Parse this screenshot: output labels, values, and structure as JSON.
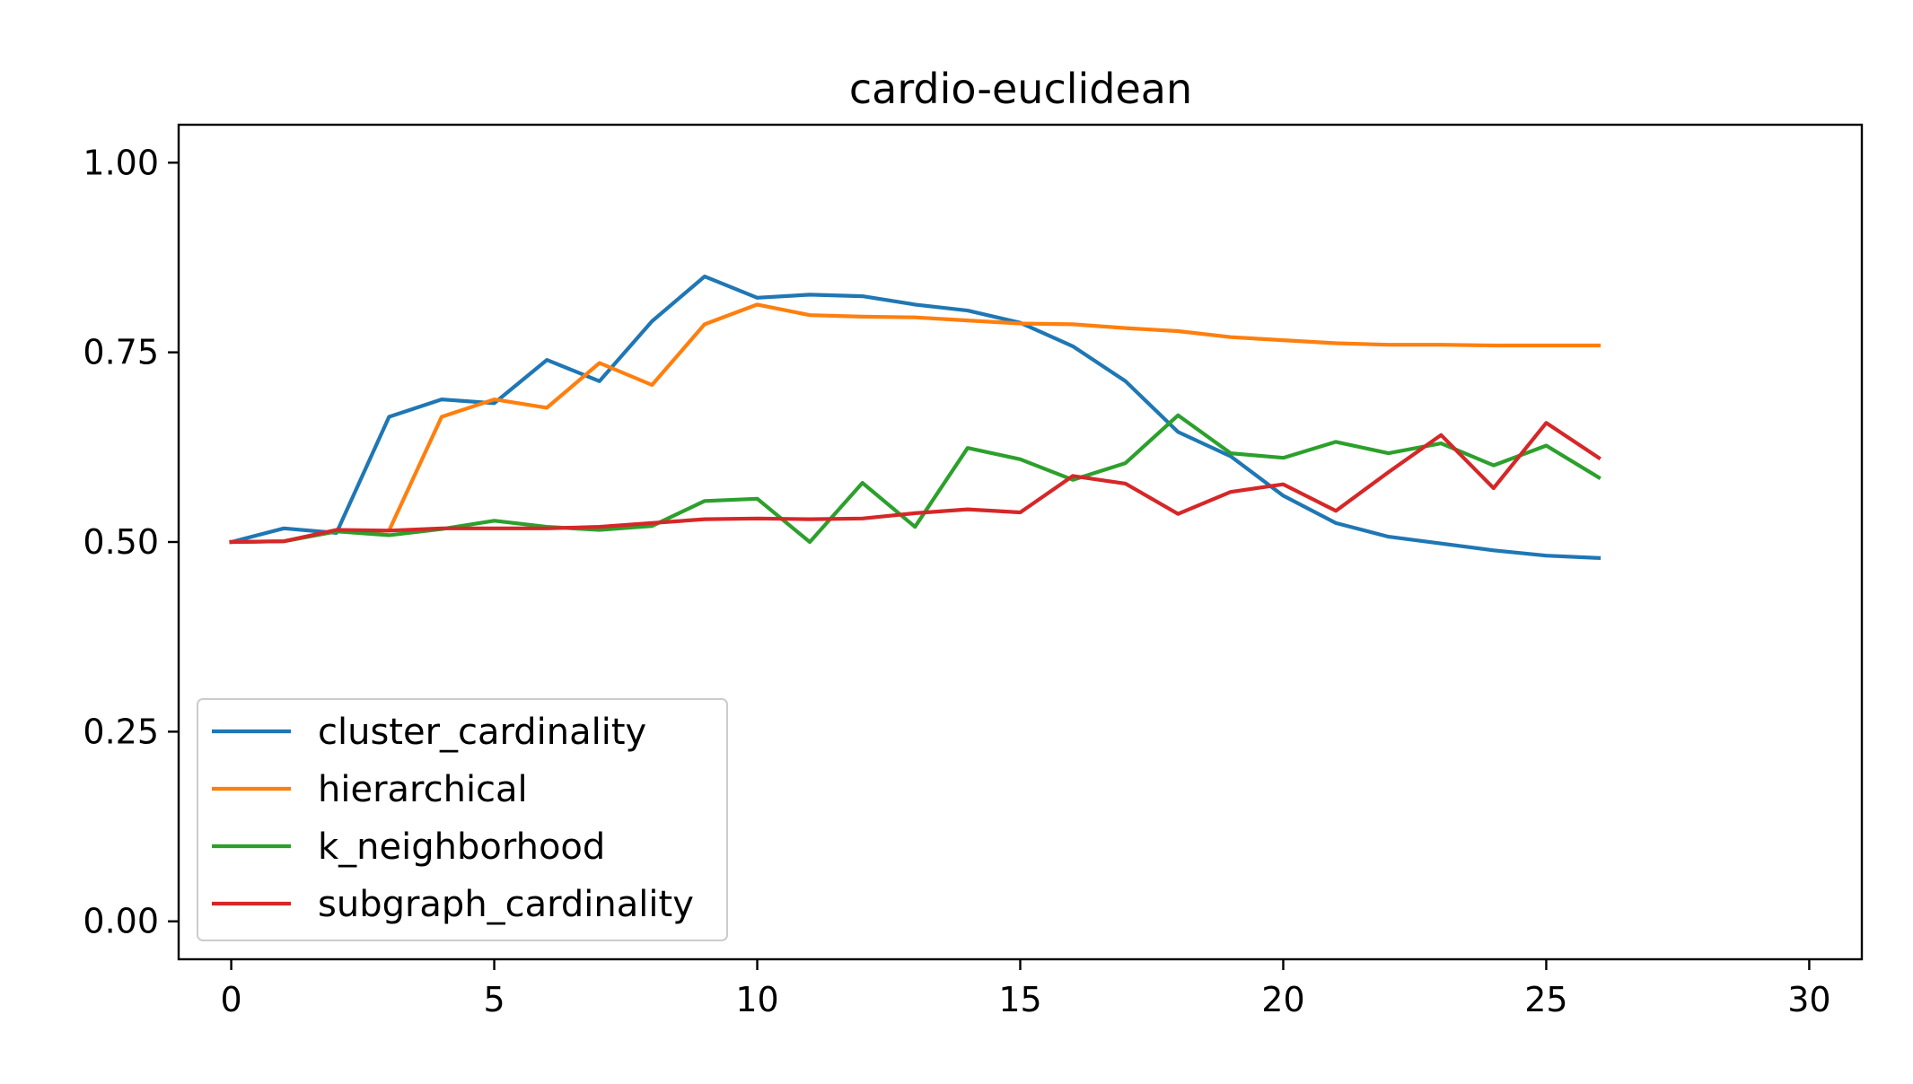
{
  "chart_data": {
    "type": "line",
    "title": "cardio-euclidean",
    "xlabel": "",
    "ylabel": "",
    "xlim": [
      -1,
      31
    ],
    "ylim": [
      -0.05,
      1.05
    ],
    "xticks": [
      0,
      5,
      10,
      15,
      20,
      25,
      30
    ],
    "yticks": [
      0.0,
      0.25,
      0.5,
      0.75,
      1.0
    ],
    "xtick_labels": [
      "0",
      "5",
      "10",
      "15",
      "20",
      "25",
      "30"
    ],
    "ytick_labels": [
      "0.00",
      "0.25",
      "0.50",
      "0.75",
      "1.00"
    ],
    "grid": false,
    "legend_position": "lower-left",
    "x": [
      0,
      1,
      2,
      3,
      4,
      5,
      6,
      7,
      8,
      9,
      10,
      11,
      12,
      13,
      14,
      15,
      16,
      17,
      18,
      19,
      20,
      21,
      22,
      23,
      24,
      25,
      26
    ],
    "series": [
      {
        "name": "cluster_cardinality",
        "color": "#1f77b4",
        "values": [
          0.5,
          0.518,
          0.512,
          0.665,
          0.688,
          0.683,
          0.74,
          0.712,
          0.791,
          0.85,
          0.822,
          0.826,
          0.824,
          0.813,
          0.805,
          0.789,
          0.758,
          0.712,
          0.645,
          0.613,
          0.561,
          0.525,
          0.507,
          0.498,
          0.489,
          0.482,
          0.479
        ]
      },
      {
        "name": "hierarchical",
        "color": "#ff7f0e",
        "values": [
          0.5,
          0.501,
          0.514,
          0.515,
          0.665,
          0.688,
          0.677,
          0.736,
          0.707,
          0.787,
          0.813,
          0.799,
          0.797,
          0.796,
          0.792,
          0.788,
          0.787,
          0.782,
          0.778,
          0.77,
          0.766,
          0.762,
          0.76,
          0.76,
          0.759,
          0.759,
          0.759
        ]
      },
      {
        "name": "k_neighborhood",
        "color": "#2ca02c",
        "values": [
          0.5,
          0.501,
          0.514,
          0.509,
          0.517,
          0.528,
          0.52,
          0.516,
          0.521,
          0.554,
          0.557,
          0.5,
          0.578,
          0.52,
          0.624,
          0.609,
          0.582,
          0.604,
          0.667,
          0.617,
          0.611,
          0.632,
          0.617,
          0.63,
          0.601,
          0.627,
          0.585
        ]
      },
      {
        "name": "subgraph_cardinality",
        "color": "#d62728",
        "values": [
          0.5,
          0.501,
          0.516,
          0.515,
          0.518,
          0.518,
          0.518,
          0.52,
          0.525,
          0.53,
          0.531,
          0.53,
          0.531,
          0.538,
          0.543,
          0.539,
          0.587,
          0.577,
          0.537,
          0.566,
          0.576,
          0.541,
          0.592,
          0.641,
          0.571,
          0.657,
          0.611
        ]
      }
    ]
  }
}
